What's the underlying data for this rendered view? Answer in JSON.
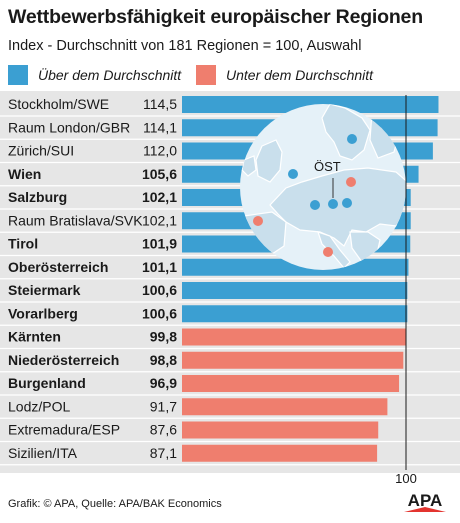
{
  "title": "Wettbewerbsfähigkeit europäischer Regionen",
  "subtitle": "Index - Durchschnitt von 181 Regionen = 100, Auswahl",
  "legend": {
    "above": {
      "label": "Über dem Durchschnitt",
      "color": "#3b9fd2"
    },
    "below": {
      "label": "Unter dem Durchschnitt",
      "color": "#ef7e6e"
    }
  },
  "colors": {
    "above": "#3b9fd2",
    "below": "#ef7e6e",
    "background": "#e6e6e6",
    "map_water": "#e5f1f8",
    "map_land": "#c9dfec"
  },
  "chart_data": {
    "type": "bar",
    "orientation": "horizontal",
    "reference_value": 100,
    "reference_label": "100",
    "categories": [
      "Stockholm/SWE",
      "Raum London/GBR",
      "Zürich/SUI",
      "Wien",
      "Salzburg",
      "Raum Bratislava/SVK",
      "Tirol",
      "Oberösterreich",
      "Steiermark",
      "Vorarlberg",
      "Kärnten",
      "Niederösterreich",
      "Burgenland",
      "Lodz/POL",
      "Extremadura/ESP",
      "Sizilien/ITA"
    ],
    "values": [
      114.5,
      114.1,
      112.0,
      105.6,
      102.1,
      102.1,
      101.9,
      101.1,
      100.6,
      100.6,
      99.8,
      98.8,
      96.9,
      91.7,
      87.6,
      87.1
    ],
    "value_labels": [
      "114,5",
      "114,1",
      "112,0",
      "105,6",
      "102,1",
      "102,1",
      "101,9",
      "101,1",
      "100,6",
      "100,6",
      "99,8",
      "98,8",
      "96,9",
      "91,7",
      "87,6",
      "87,1"
    ],
    "bold": [
      false,
      false,
      false,
      true,
      true,
      false,
      true,
      true,
      true,
      true,
      true,
      true,
      true,
      false,
      false,
      false
    ],
    "xlim": [
      0,
      114.5
    ]
  },
  "map": {
    "label": "ÖST"
  },
  "footer": "Grafik: © APA, Quelle: APA/BAK Economics",
  "logo": "APA"
}
